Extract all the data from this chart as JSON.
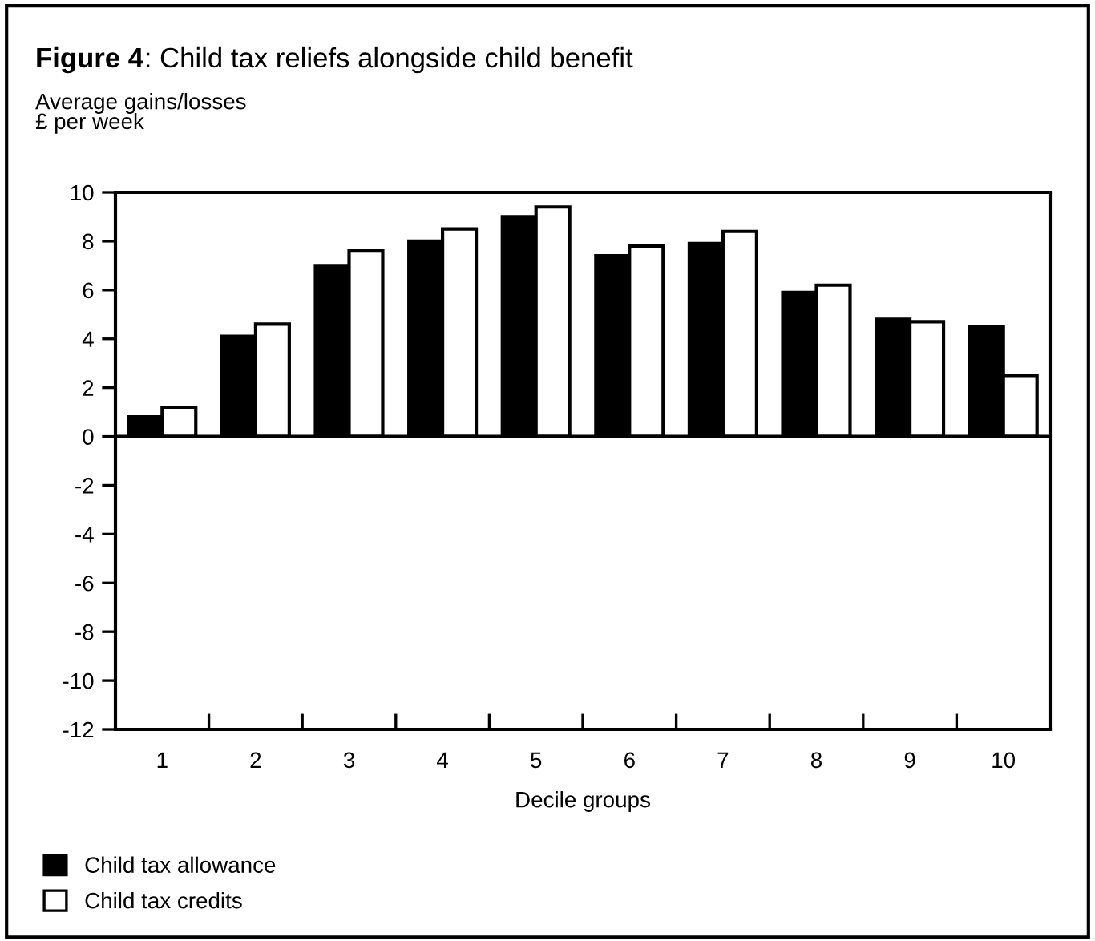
{
  "chart_data": {
    "type": "bar",
    "title": "Figure 4: Child tax reliefs alongside child benefit",
    "ylabel": "Average gains/losses\n£ per week",
    "xlabel": "Decile groups",
    "categories": [
      "1",
      "2",
      "3",
      "4",
      "5",
      "6",
      "7",
      "8",
      "9",
      "10"
    ],
    "series": [
      {
        "name": "Child tax allowance",
        "color": "#000000",
        "values": [
          0.8,
          4.1,
          7.0,
          8.0,
          9.0,
          7.4,
          7.9,
          5.9,
          4.8,
          4.5
        ]
      },
      {
        "name": "Child tax credits",
        "color": "#ffffff",
        "values": [
          1.2,
          4.6,
          7.6,
          8.5,
          9.4,
          7.8,
          8.4,
          6.2,
          4.7,
          2.5
        ]
      }
    ],
    "ylim": [
      -12,
      10
    ],
    "yticks": [
      {
        "value": 10,
        "label": "10"
      },
      {
        "value": 8,
        "label": "8"
      },
      {
        "value": 6,
        "label": "6"
      },
      {
        "value": 4,
        "label": "4"
      },
      {
        "value": 2,
        "label": "2"
      },
      {
        "value": 0,
        "label": "0"
      },
      {
        "value": -2,
        "label": "-2"
      },
      {
        "value": -4,
        "label": "-4"
      },
      {
        "value": -6,
        "label": "-6"
      },
      {
        "value": -8,
        "label": "-8"
      },
      {
        "value": -10,
        "label": "-10"
      },
      {
        "value": -12,
        "label": "-12"
      }
    ],
    "ref_lines": [
      {
        "axis": "y",
        "value": 0,
        "color": "#000000"
      }
    ],
    "legend": "bottom left"
  }
}
